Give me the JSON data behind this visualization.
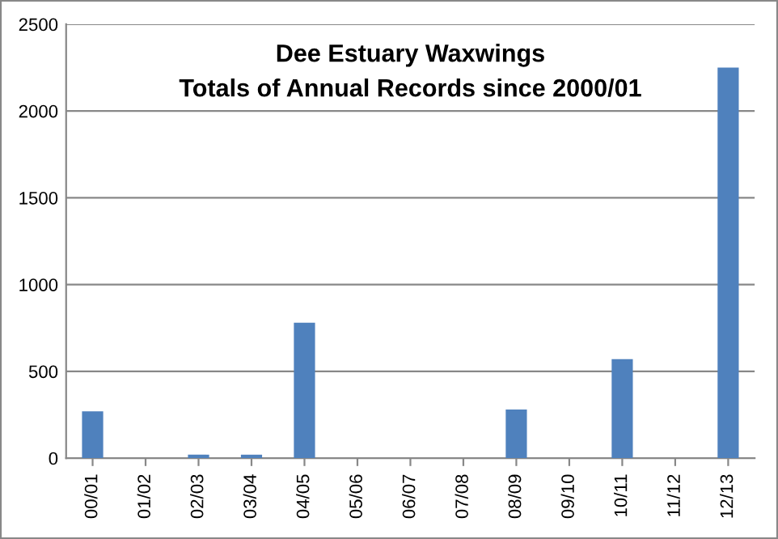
{
  "chart_data": {
    "type": "bar",
    "title": "Dee Estuary Waxwings",
    "subtitle": "Totals of Annual Records since 2000/01",
    "categories": [
      "00/01",
      "01/02",
      "02/03",
      "03/04",
      "04/05",
      "05/06",
      "06/07",
      "07/08",
      "08/09",
      "09/10",
      "10/11",
      "11/12",
      "12/13"
    ],
    "values": [
      270,
      0,
      20,
      20,
      780,
      0,
      0,
      0,
      280,
      0,
      570,
      0,
      2250
    ],
    "color": "#4f81bd",
    "ylim": [
      0,
      2500
    ],
    "yticks": [
      0,
      500,
      1000,
      1500,
      2000,
      2500
    ],
    "grid": "y",
    "legend": false
  }
}
